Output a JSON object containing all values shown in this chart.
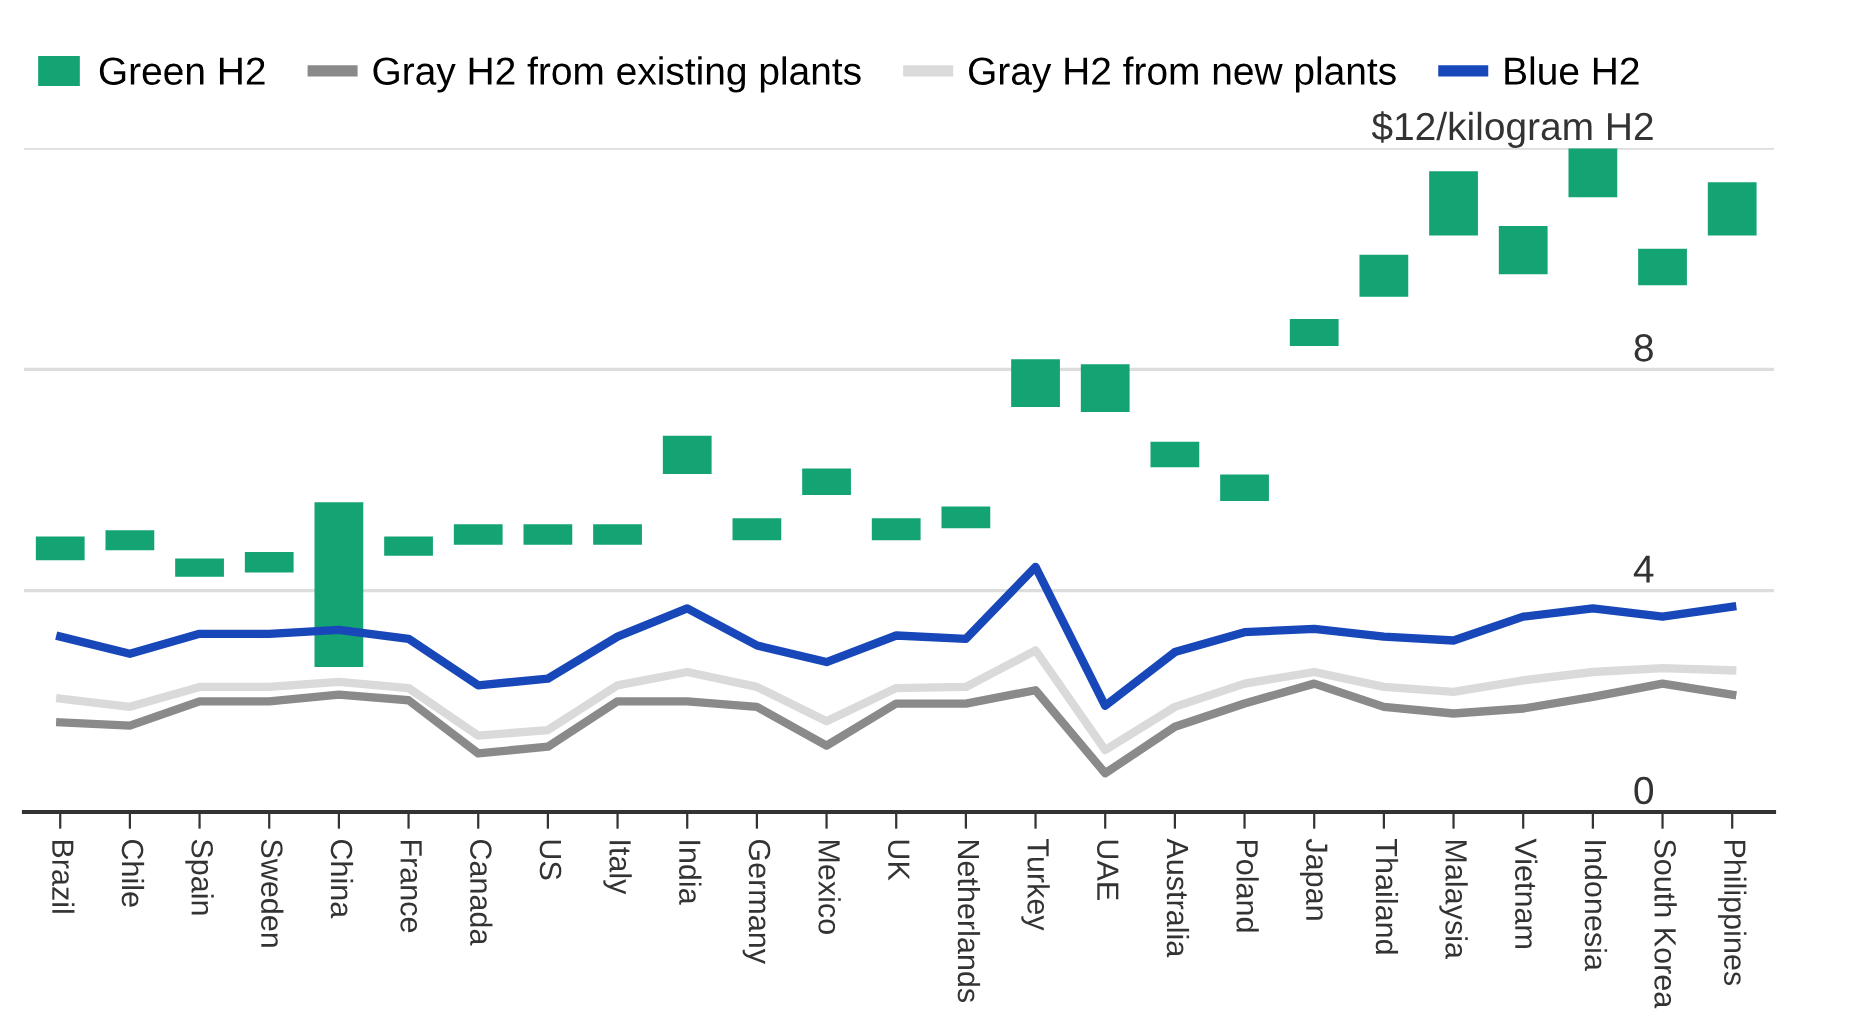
{
  "chart_data": {
    "type": "line",
    "categories": [
      "Brazil",
      "Chile",
      "Spain",
      "Sweden",
      "China",
      "France",
      "Canada",
      "US",
      "Italy",
      "India",
      "Germany",
      "Mexico",
      "UK",
      "Netherlands",
      "Turkey",
      "UAE",
      "Australia",
      "Poland",
      "Japan",
      "Thailand",
      "Malaysia",
      "Vietnam",
      "Indonesia",
      "South Korea",
      "Philippines"
    ],
    "series": [
      {
        "name": "Green H2",
        "type": "bar",
        "color": "#14a373",
        "base": [
          4.55,
          4.73,
          4.25,
          4.33,
          2.62,
          4.63,
          4.83,
          4.83,
          4.83,
          6.11,
          4.91,
          5.73,
          4.91,
          5.13,
          7.32,
          7.23,
          6.23,
          5.62,
          8.42,
          9.31,
          10.42,
          9.72,
          11.11,
          9.52,
          10.42
        ],
        "values": [
          0.43,
          0.36,
          0.33,
          0.37,
          2.98,
          0.35,
          0.37,
          0.37,
          0.37,
          0.69,
          0.4,
          0.48,
          0.4,
          0.39,
          0.86,
          0.86,
          0.46,
          0.48,
          0.49,
          0.76,
          1.16,
          0.87,
          0.88,
          0.66,
          0.96
        ]
      },
      {
        "name": "Gray H2 from existing plants",
        "color": "#8a8a8a",
        "values": [
          1.62,
          1.56,
          2.0,
          2.0,
          2.12,
          2.02,
          1.06,
          1.18,
          2.0,
          2.0,
          1.9,
          1.2,
          1.96,
          1.96,
          2.2,
          0.7,
          1.54,
          1.96,
          2.32,
          1.9,
          1.78,
          1.87,
          2.08,
          2.32,
          2.12
        ]
      },
      {
        "name": "Gray H2 from new plants",
        "color": "#dadada",
        "values": [
          2.05,
          1.9,
          2.26,
          2.26,
          2.35,
          2.24,
          1.38,
          1.48,
          2.29,
          2.53,
          2.26,
          1.64,
          2.24,
          2.26,
          2.92,
          1.12,
          1.9,
          2.32,
          2.53,
          2.26,
          2.17,
          2.38,
          2.53,
          2.6,
          2.56
        ]
      },
      {
        "name": "Blue H2",
        "color": "#1747b8",
        "values": [
          3.17,
          2.86,
          3.22,
          3.22,
          3.29,
          3.13,
          2.29,
          2.41,
          3.17,
          3.68,
          3.01,
          2.71,
          3.19,
          3.13,
          4.43,
          1.92,
          2.89,
          3.25,
          3.31,
          3.17,
          3.1,
          3.53,
          3.68,
          3.53,
          3.71
        ]
      }
    ],
    "ylim": [
      0,
      12
    ],
    "yticks": [
      0,
      4,
      8,
      {
        "value": 12,
        "label": "$12/kilogram H2"
      }
    ],
    "grid": "y",
    "legend": "top left",
    "marker": "none",
    "line_style": "solid"
  }
}
